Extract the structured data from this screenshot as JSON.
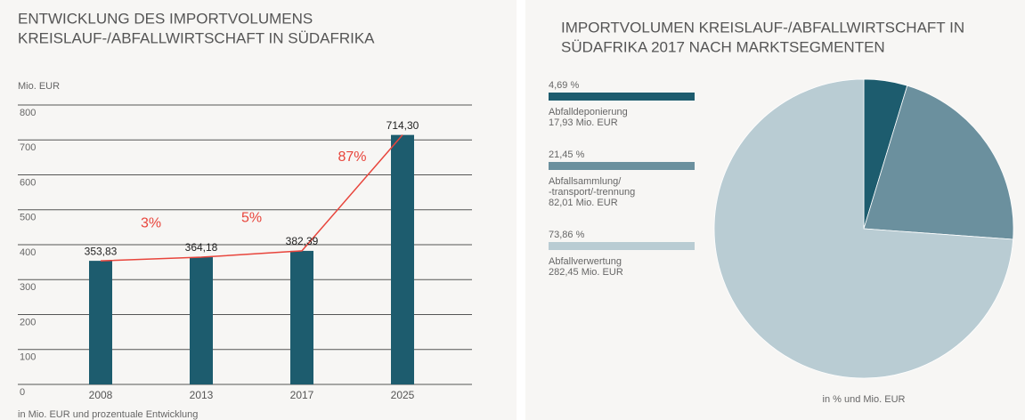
{
  "chart_data": [
    {
      "type": "bar",
      "title": [
        "ENTWICKLUNG DES IMPORTVOLUMENS",
        "KREISLAUF-/ABFALLWIRTSCHAFT IN SÜDAFRIKA"
      ],
      "y_label": "Mio. EUR",
      "categories": [
        "2008",
        "2013",
        "2017",
        "2025"
      ],
      "values": [
        353.83,
        364.18,
        382.39,
        714.3
      ],
      "value_labels": [
        "353,83",
        "364,18",
        "382,39",
        "714,30"
      ],
      "color": "#1d5c6e",
      "growth": [
        3,
        5,
        87
      ],
      "growth_labels": [
        "3%",
        "5%",
        "87%"
      ],
      "growth_color": "#e8453c",
      "ylim": [
        0,
        800
      ],
      "yticks": [
        0,
        100,
        200,
        300,
        400,
        500,
        600,
        700,
        800
      ],
      "grid": true,
      "note": "in Mio. EUR und prozentuale Entwicklung"
    },
    {
      "type": "pie",
      "title": [
        "IMPORTVOLUMEN KREISLAUF-/ABFALLWIRTSCHAFT IN",
        "SÜDAFRIKA 2017 NACH MARKTSEGMENTEN"
      ],
      "categories": [
        "Abfalldeponierung",
        "Abfallsammlung/\n-transport/-trennung",
        "Abfallverwertung"
      ],
      "values": [
        4.69,
        21.45,
        73.86
      ],
      "value_labels": [
        "4,69 %",
        "21,45 %",
        "73,86 %"
      ],
      "amounts": [
        17.93,
        82.01,
        282.45
      ],
      "amount_labels": [
        "17,93 Mio. EUR",
        "82,01 Mio. EUR",
        "282,45 Mio. EUR"
      ],
      "colors": [
        "#1d5c6e",
        "#6b909e",
        "#b9ccd3"
      ],
      "note": "in % und Mio. EUR"
    }
  ]
}
